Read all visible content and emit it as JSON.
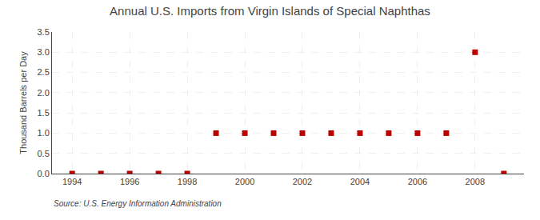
{
  "chart_data": {
    "type": "scatter",
    "title": "Annual U.S. Imports from Virgin Islands of Special Naphthas",
    "ylabel": "Thousand Barrels per Day",
    "annotations": [
      "Source: U.S. Energy Information Administration"
    ],
    "x": [
      1994,
      1995,
      1996,
      1997,
      1998,
      1999,
      2000,
      2001,
      2002,
      2003,
      2004,
      2005,
      2006,
      2007,
      2008,
      2009
    ],
    "values": [
      0.0,
      0.0,
      0.0,
      0.0,
      0.0,
      1.0,
      1.0,
      1.0,
      1.0,
      1.0,
      1.0,
      1.0,
      1.0,
      1.0,
      3.0,
      0.0
    ],
    "color": "#bb0000",
    "marker": "square",
    "xlim": [
      1993.3,
      2009.7
    ],
    "xticks": [
      1994,
      1996,
      1998,
      2000,
      2002,
      2004,
      2006,
      2008
    ],
    "ylim": [
      0.0,
      3.5
    ],
    "yticks": [
      {
        "value": 0.0,
        "label": "0.0"
      },
      0.5,
      {
        "value": 1.0,
        "label": "1.0"
      },
      1.5,
      {
        "value": 2.0,
        "label": "2.0"
      },
      2.5,
      {
        "value": 3.0,
        "label": "3.0"
      },
      3.5
    ],
    "grid": true
  }
}
